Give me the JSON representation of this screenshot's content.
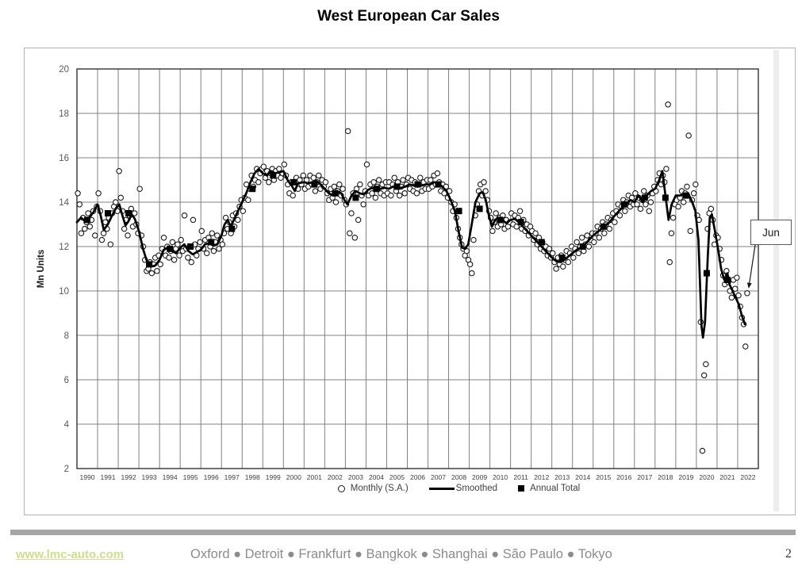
{
  "title": "West European Car Sales",
  "annotation": {
    "label": "Jun"
  },
  "footer": {
    "website": "www.lmc-auto.com",
    "locations": "Oxford ● Detroit ● Frankfurt ● Bangkok ● Shanghai ● São Paulo ● Tokyo",
    "page_number": "2"
  },
  "colors": {
    "gridline": "#808080",
    "plot_border": "#333333",
    "series_black": "#000000",
    "tick_label": "#595959",
    "legend_text": "#404040",
    "link_green": "#ccdf8e",
    "footer_gray": "#8c8c8c",
    "divider_gray": "#a6a6a6"
  },
  "chart_data": {
    "type": "line",
    "title": "West European Car Sales",
    "xlabel": "",
    "ylabel": "Mn Units",
    "ylim": [
      2,
      20
    ],
    "ytick_step": 2,
    "xlim": [
      1990,
      2023
    ],
    "grid": "both",
    "legend_position": "bottom",
    "legend": [
      "Monthly (S.A.)",
      "Smoothed",
      "Annual Total"
    ],
    "x_years": [
      1990,
      1991,
      1992,
      1993,
      1994,
      1995,
      1996,
      1997,
      1998,
      1999,
      2000,
      2001,
      2002,
      2003,
      2004,
      2005,
      2006,
      2007,
      2008,
      2009,
      2010,
      2011,
      2012,
      2013,
      2014,
      2015,
      2016,
      2017,
      2018,
      2019,
      2020,
      2021,
      2022
    ],
    "last_point_label": "Jun",
    "last_point": [
      2022.458,
      9.9
    ],
    "monthly_by_year": {
      "1990": [
        14.4,
        13.9,
        12.6,
        13.3,
        12.8,
        13.1,
        13.5,
        12.9,
        13.2,
        13.6,
        12.5,
        13.8
      ],
      "1991": [
        14.4,
        13.6,
        12.3,
        12.6,
        13.1,
        12.8,
        13.3,
        12.1,
        13.5,
        13.8,
        14.0,
        13.6
      ],
      "1992": [
        15.4,
        14.2,
        13.6,
        12.8,
        13.2,
        12.5,
        13.4,
        13.7,
        12.9,
        13.5,
        13.0,
        12.6
      ],
      "1993": [
        14.6,
        12.5,
        12.0,
        11.4,
        10.9,
        11.0,
        11.3,
        10.8,
        11.2,
        11.5,
        10.9,
        11.6
      ],
      "1994": [
        11.2,
        11.9,
        12.4,
        11.6,
        12.0,
        11.5,
        11.8,
        12.2,
        11.4,
        11.9,
        12.1,
        11.6
      ],
      "1995": [
        12.3,
        11.8,
        13.4,
        11.9,
        11.5,
        12.0,
        11.3,
        13.2,
        12.1,
        11.6,
        11.9,
        12.2
      ],
      "1996": [
        12.7,
        11.9,
        12.3,
        11.7,
        12.4,
        12.0,
        12.6,
        11.8,
        12.2,
        12.5,
        11.9,
        12.3
      ],
      "1997": [
        12.1,
        12.6,
        13.3,
        12.8,
        13.1,
        12.6,
        13.4,
        12.9,
        13.5,
        13.2,
        13.8,
        14.1
      ],
      "1998": [
        13.6,
        14.2,
        14.8,
        14.1,
        14.6,
        15.2,
        14.7,
        15.0,
        15.5,
        14.9,
        15.3,
        15.5
      ],
      "1999": [
        15.6,
        15.1,
        15.4,
        14.9,
        15.3,
        15.5,
        15.0,
        15.4,
        15.2,
        15.5,
        15.1,
        15.3
      ],
      "2000": [
        15.7,
        15.2,
        14.8,
        14.4,
        14.9,
        14.3,
        14.7,
        15.1,
        14.6,
        15.0,
        14.8,
        15.2
      ],
      "2001": [
        14.6,
        15.0,
        14.7,
        15.2,
        14.8,
        15.1,
        14.5,
        14.9,
        15.2,
        14.6,
        15.0,
        14.7
      ],
      "2002": [
        14.9,
        14.4,
        14.1,
        14.6,
        14.2,
        14.7,
        14.0,
        14.5,
        14.8,
        14.3,
        14.6,
        14.1
      ],
      "2003": [
        13.9,
        17.2,
        12.6,
        13.5,
        14.4,
        12.4,
        14.6,
        13.2,
        14.8,
        14.3,
        13.9,
        14.5
      ],
      "2004": [
        15.7,
        14.3,
        14.8,
        14.4,
        14.9,
        14.2,
        14.7,
        15.0,
        14.4,
        14.8,
        14.3,
        14.9
      ],
      "2005": [
        14.4,
        14.9,
        14.3,
        14.8,
        15.1,
        14.5,
        14.9,
        14.3,
        14.7,
        15.0,
        14.4,
        14.8
      ],
      "2006": [
        15.1,
        14.6,
        15.0,
        14.5,
        14.9,
        14.4,
        14.8,
        15.1,
        14.5,
        14.9,
        14.6,
        15.0
      ],
      "2007": [
        14.6,
        15.0,
        14.7,
        15.2,
        14.8,
        15.3,
        14.9,
        14.5,
        14.8,
        14.4,
        14.7,
        14.2
      ],
      "2008": [
        14.5,
        14.0,
        13.6,
        13.9,
        13.3,
        12.8,
        12.4,
        12.1,
        11.9,
        11.6,
        11.8,
        11.4
      ],
      "2009": [
        11.2,
        10.8,
        12.3,
        13.4,
        13.9,
        14.5,
        14.8,
        14.3,
        14.9,
        14.5,
        14.1,
        13.6
      ],
      "2010": [
        13.3,
        12.7,
        13.1,
        13.5,
        12.9,
        13.3,
        13.0,
        13.4,
        12.8,
        13.2,
        12.9,
        13.1
      ],
      "2011": [
        13.5,
        13.0,
        13.4,
        12.9,
        13.3,
        13.6,
        12.8,
        13.2,
        12.7,
        13.0,
        12.5,
        12.9
      ],
      "2012": [
        12.7,
        12.3,
        12.6,
        12.1,
        12.4,
        11.9,
        12.2,
        11.8,
        12.0,
        11.6,
        11.9,
        11.5
      ],
      "2013": [
        11.7,
        11.3,
        11.0,
        11.5,
        11.2,
        11.6,
        11.1,
        11.4,
        11.8,
        11.3,
        11.7,
        12.0
      ],
      "2014": [
        11.5,
        11.9,
        12.2,
        11.7,
        12.0,
        12.4,
        11.8,
        12.1,
        12.5,
        12.0,
        12.3,
        12.6
      ],
      "2015": [
        12.2,
        12.6,
        12.9,
        12.4,
        12.8,
        13.1,
        12.6,
        13.0,
        13.3,
        12.8,
        13.2,
        13.5
      ],
      "2016": [
        13.1,
        13.6,
        13.9,
        13.4,
        13.8,
        14.1,
        13.6,
        14.0,
        14.3,
        13.8,
        14.2,
        13.9
      ],
      "2017": [
        14.4,
        13.9,
        14.2,
        13.7,
        14.1,
        14.5,
        13.9,
        14.3,
        13.6,
        14.0,
        14.4,
        14.7
      ],
      "2018": [
        14.5,
        15.0,
        15.3,
        14.8,
        15.2,
        14.9,
        15.5,
        18.4,
        11.3,
        12.6,
        13.3,
        13.9
      ],
      "2019": [
        14.1,
        13.8,
        14.2,
        14.5,
        14.0,
        14.4,
        14.7,
        17.0,
        12.7,
        14.1,
        14.4,
        14.8
      ],
      "2020": [
        13.4,
        13.2,
        8.6,
        2.8,
        6.2,
        6.7,
        12.8,
        13.5,
        13.7,
        13.2,
        12.1,
        12.5
      ],
      "2021": [
        12.4,
        11.9,
        11.4,
        10.7,
        10.3,
        10.9,
        10.4,
        10.0,
        9.7,
        10.5,
        10.1,
        10.6
      ],
      "2022": [
        9.8,
        9.3,
        8.8,
        8.5,
        7.5,
        9.9
      ]
    },
    "smoothed": [
      [
        1990.0,
        13.1
      ],
      [
        1990.2,
        13.3
      ],
      [
        1990.4,
        13.15
      ],
      [
        1990.6,
        13.3
      ],
      [
        1990.8,
        13.55
      ],
      [
        1991.0,
        13.9
      ],
      [
        1991.15,
        13.4
      ],
      [
        1991.3,
        12.75
      ],
      [
        1991.5,
        13.0
      ],
      [
        1991.7,
        13.4
      ],
      [
        1991.9,
        13.75
      ],
      [
        1992.05,
        13.9
      ],
      [
        1992.2,
        13.4
      ],
      [
        1992.35,
        12.95
      ],
      [
        1992.5,
        13.15
      ],
      [
        1992.65,
        13.45
      ],
      [
        1992.8,
        13.25
      ],
      [
        1993.0,
        12.7
      ],
      [
        1993.2,
        11.9
      ],
      [
        1993.4,
        11.3
      ],
      [
        1993.6,
        11.1
      ],
      [
        1993.8,
        11.15
      ],
      [
        1994.0,
        11.4
      ],
      [
        1994.2,
        11.85
      ],
      [
        1994.4,
        11.95
      ],
      [
        1994.6,
        11.8
      ],
      [
        1994.8,
        11.7
      ],
      [
        1995.0,
        11.95
      ],
      [
        1995.2,
        12.1
      ],
      [
        1995.4,
        11.8
      ],
      [
        1995.6,
        11.65
      ],
      [
        1995.8,
        11.75
      ],
      [
        1996.0,
        11.85
      ],
      [
        1996.2,
        12.1
      ],
      [
        1996.4,
        12.15
      ],
      [
        1996.6,
        12.05
      ],
      [
        1996.8,
        12.1
      ],
      [
        1997.0,
        12.5
      ],
      [
        1997.15,
        13.0
      ],
      [
        1997.3,
        13.2
      ],
      [
        1997.45,
        12.9
      ],
      [
        1997.6,
        13.2
      ],
      [
        1997.8,
        13.6
      ],
      [
        1998.0,
        14.0
      ],
      [
        1998.2,
        14.4
      ],
      [
        1998.4,
        14.9
      ],
      [
        1998.6,
        15.3
      ],
      [
        1998.8,
        15.5
      ],
      [
        1999.0,
        15.3
      ],
      [
        1999.2,
        15.2
      ],
      [
        1999.4,
        15.4
      ],
      [
        1999.6,
        15.3
      ],
      [
        1999.8,
        15.35
      ],
      [
        2000.0,
        15.4
      ],
      [
        2000.2,
        15.0
      ],
      [
        2000.4,
        14.75
      ],
      [
        2000.55,
        14.5
      ],
      [
        2000.7,
        14.85
      ],
      [
        2001.0,
        14.9
      ],
      [
        2001.2,
        14.85
      ],
      [
        2001.4,
        14.9
      ],
      [
        2001.6,
        14.95
      ],
      [
        2001.8,
        14.8
      ],
      [
        2002.0,
        14.6
      ],
      [
        2002.2,
        14.4
      ],
      [
        2002.4,
        14.3
      ],
      [
        2002.6,
        14.5
      ],
      [
        2002.8,
        14.4
      ],
      [
        2002.95,
        14.1
      ],
      [
        2003.1,
        13.9
      ],
      [
        2003.3,
        14.3
      ],
      [
        2003.5,
        14.5
      ],
      [
        2003.7,
        14.4
      ],
      [
        2003.9,
        14.35
      ],
      [
        2004.1,
        14.55
      ],
      [
        2004.3,
        14.65
      ],
      [
        2004.5,
        14.5
      ],
      [
        2004.7,
        14.6
      ],
      [
        2004.9,
        14.65
      ],
      [
        2005.1,
        14.6
      ],
      [
        2005.3,
        14.7
      ],
      [
        2005.5,
        14.6
      ],
      [
        2005.7,
        14.65
      ],
      [
        2005.9,
        14.7
      ],
      [
        2006.1,
        14.8
      ],
      [
        2006.3,
        14.75
      ],
      [
        2006.5,
        14.7
      ],
      [
        2006.7,
        14.75
      ],
      [
        2006.9,
        14.8
      ],
      [
        2007.1,
        14.8
      ],
      [
        2007.3,
        14.9
      ],
      [
        2007.5,
        14.85
      ],
      [
        2007.7,
        14.7
      ],
      [
        2007.9,
        14.5
      ],
      [
        2008.1,
        14.1
      ],
      [
        2008.3,
        13.6
      ],
      [
        2008.5,
        12.6
      ],
      [
        2008.65,
        11.95
      ],
      [
        2008.8,
        11.9
      ],
      [
        2008.95,
        12.1
      ],
      [
        2009.1,
        12.9
      ],
      [
        2009.3,
        14.0
      ],
      [
        2009.5,
        14.4
      ],
      [
        2009.65,
        14.45
      ],
      [
        2009.8,
        14.1
      ],
      [
        2009.95,
        13.4
      ],
      [
        2010.1,
        12.9
      ],
      [
        2010.25,
        13.2
      ],
      [
        2010.4,
        13.3
      ],
      [
        2010.6,
        13.2
      ],
      [
        2010.8,
        13.05
      ],
      [
        2011.0,
        13.2
      ],
      [
        2011.2,
        13.25
      ],
      [
        2011.4,
        13.1
      ],
      [
        2011.6,
        12.9
      ],
      [
        2011.8,
        12.7
      ],
      [
        2012.0,
        12.5
      ],
      [
        2012.2,
        12.3
      ],
      [
        2012.4,
        12.1
      ],
      [
        2012.6,
        11.9
      ],
      [
        2012.8,
        11.7
      ],
      [
        2013.0,
        11.5
      ],
      [
        2013.2,
        11.35
      ],
      [
        2013.4,
        11.3
      ],
      [
        2013.6,
        11.4
      ],
      [
        2013.8,
        11.55
      ],
      [
        2014.0,
        11.7
      ],
      [
        2014.2,
        11.85
      ],
      [
        2014.4,
        11.95
      ],
      [
        2014.6,
        12.1
      ],
      [
        2014.8,
        12.3
      ],
      [
        2015.0,
        12.5
      ],
      [
        2015.2,
        12.65
      ],
      [
        2015.4,
        12.8
      ],
      [
        2015.6,
        12.95
      ],
      [
        2015.8,
        13.1
      ],
      [
        2016.0,
        13.35
      ],
      [
        2016.2,
        13.55
      ],
      [
        2016.4,
        13.75
      ],
      [
        2016.6,
        13.9
      ],
      [
        2016.8,
        14.1
      ],
      [
        2017.0,
        14.0
      ],
      [
        2017.2,
        14.3
      ],
      [
        2017.4,
        14.0
      ],
      [
        2017.6,
        14.3
      ],
      [
        2017.8,
        14.5
      ],
      [
        2018.0,
        14.6
      ],
      [
        2018.2,
        15.0
      ],
      [
        2018.35,
        15.4
      ],
      [
        2018.5,
        14.3
      ],
      [
        2018.65,
        13.2
      ],
      [
        2018.8,
        13.9
      ],
      [
        2019.0,
        14.3
      ],
      [
        2019.2,
        14.3
      ],
      [
        2019.4,
        14.35
      ],
      [
        2019.6,
        14.4
      ],
      [
        2019.8,
        14.0
      ],
      [
        2019.95,
        13.6
      ],
      [
        2020.1,
        12.3
      ],
      [
        2020.25,
        8.4
      ],
      [
        2020.32,
        7.9
      ],
      [
        2020.42,
        8.6
      ],
      [
        2020.55,
        11.5
      ],
      [
        2020.65,
        13.3
      ],
      [
        2020.75,
        13.45
      ],
      [
        2020.9,
        12.7
      ],
      [
        2021.05,
        11.9
      ],
      [
        2021.2,
        11.0
      ],
      [
        2021.35,
        10.5
      ],
      [
        2021.5,
        10.8
      ],
      [
        2021.6,
        10.3
      ],
      [
        2021.75,
        10.0
      ],
      [
        2021.9,
        9.7
      ],
      [
        2022.05,
        9.4
      ],
      [
        2022.2,
        8.9
      ],
      [
        2022.35,
        8.5
      ]
    ],
    "annual_totals": {
      "1990": 13.2,
      "1991": 13.5,
      "1992": 13.5,
      "1993": 11.2,
      "1994": 11.9,
      "1995": 12.0,
      "1996": 12.2,
      "1997": 12.8,
      "1998": 14.6,
      "1999": 15.2,
      "2000": 14.9,
      "2001": 14.8,
      "2002": 14.4,
      "2003": 14.2,
      "2004": 14.6,
      "2005": 14.7,
      "2006": 14.8,
      "2007": 14.8,
      "2008": 13.6,
      "2009": 13.7,
      "2010": 13.2,
      "2011": 13.1,
      "2012": 12.2,
      "2013": 11.5,
      "2014": 12.0,
      "2015": 12.9,
      "2016": 13.9,
      "2017": 14.2,
      "2018": 14.2,
      "2019": 14.3,
      "2020": 10.8,
      "2021": 10.5
    }
  }
}
